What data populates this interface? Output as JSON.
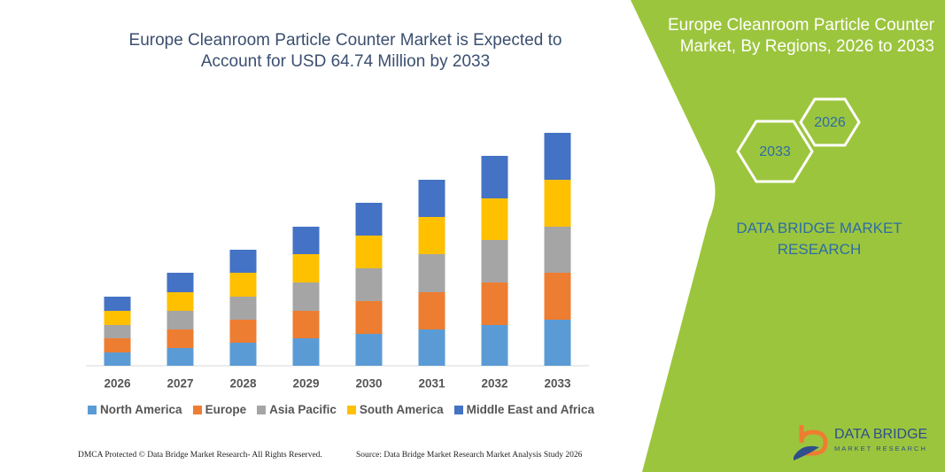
{
  "chart_data": {
    "type": "bar",
    "stacked": true,
    "title": "Europe Cleanroom Particle Counter Market is Expected to Account for USD 64.74 Million by 2033",
    "categories": [
      "2026",
      "2027",
      "2028",
      "2029",
      "2030",
      "2031",
      "2032",
      "2033"
    ],
    "series": [
      {
        "name": "North America",
        "color": "#5b9bd5",
        "values": [
          15,
          20,
          26,
          31,
          36,
          41,
          46,
          52
        ]
      },
      {
        "name": "Europe",
        "color": "#ed7d31",
        "values": [
          16,
          21,
          26,
          31,
          37,
          42,
          48,
          53
        ]
      },
      {
        "name": "Asia Pacific",
        "color": "#a5a5a5",
        "values": [
          15,
          21,
          26,
          32,
          37,
          43,
          48,
          52
        ]
      },
      {
        "name": "South America",
        "color": "#ffc000",
        "values": [
          16,
          21,
          27,
          32,
          37,
          42,
          47,
          53
        ]
      },
      {
        "name": "Middle East and Africa",
        "color": "#4472c4",
        "values": [
          16,
          22,
          26,
          31,
          37,
          42,
          48,
          53
        ]
      }
    ]
  },
  "side_panel": {
    "title": "Europe Cleanroom Particle Counter Market, By Regions, 2026 to 2033",
    "hexagons": [
      "2033",
      "2026"
    ],
    "brand": "DATA BRIDGE MARKET RESEARCH"
  },
  "logo": {
    "name": "DATA BRIDGE",
    "tagline": "MARKET RESEARCH"
  },
  "footer": {
    "left": "DMCA Protected © Data Bridge Market Research- All Rights Reserved.",
    "right": "Source: Data Bridge Market Research Market Analysis Study 2026"
  }
}
